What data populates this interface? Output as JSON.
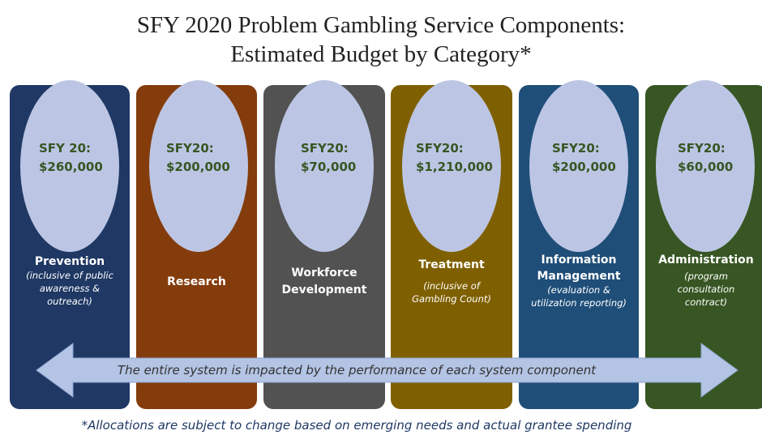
{
  "header": {
    "title_lines": [
      "SFY 2020 Problem Gambling Service Components:",
      "Estimated Budget by Category*"
    ]
  },
  "columns": [
    {
      "label": "SFY 20:",
      "amount": "$260,000",
      "name": [
        "Prevention"
      ],
      "note": [
        "(inclusive of public",
        "awareness &",
        "outreach)"
      ]
    },
    {
      "label": "SFY20:",
      "amount": "$200,000",
      "name": [
        "Research"
      ],
      "note": []
    },
    {
      "label": "SFY20:",
      "amount": "$70,000",
      "name": [
        "Workforce",
        "Development"
      ],
      "note": []
    },
    {
      "label": "SFY20:",
      "amount": "$1,210,000",
      "name": [
        "Treatment"
      ],
      "note": [
        "(inclusive of",
        "Gambling Count)"
      ]
    },
    {
      "label": "SFY20:",
      "amount": "$200,000",
      "name": [
        "Information",
        "Management"
      ],
      "note": [
        "(evaluation &",
        "utilization reporting)"
      ]
    },
    {
      "label": "SFY20:",
      "amount": "$60,000",
      "name": [
        "Administration"
      ],
      "note": [
        "(program",
        "consultation",
        "contract)"
      ]
    }
  ],
  "arrow_text": "The entire system is impacted by the performance of each system component",
  "footnote": "*Allocations are subject to change based on emerging needs and actual grantee spending"
}
